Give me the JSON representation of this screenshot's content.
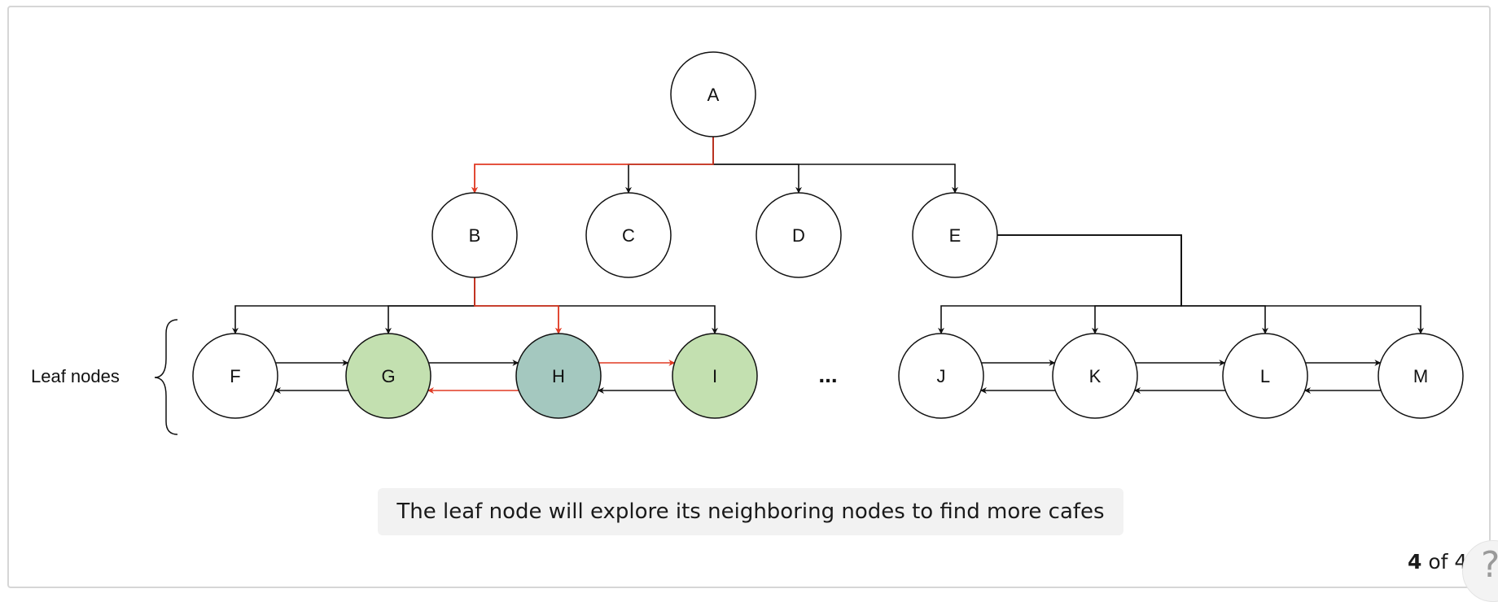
{
  "diagram": {
    "nodes": [
      {
        "id": "A",
        "label": "A",
        "fill": "#ffffff"
      },
      {
        "id": "B",
        "label": "B",
        "fill": "#ffffff"
      },
      {
        "id": "C",
        "label": "C",
        "fill": "#ffffff"
      },
      {
        "id": "D",
        "label": "D",
        "fill": "#ffffff"
      },
      {
        "id": "E",
        "label": "E",
        "fill": "#ffffff"
      },
      {
        "id": "F",
        "label": "F",
        "fill": "#ffffff"
      },
      {
        "id": "G",
        "label": "G",
        "fill": "#c3e0b0"
      },
      {
        "id": "H",
        "label": "H",
        "fill": "#a4c8bf"
      },
      {
        "id": "I",
        "label": "I",
        "fill": "#c3e0b0"
      },
      {
        "id": "J",
        "label": "J",
        "fill": "#ffffff"
      },
      {
        "id": "K",
        "label": "K",
        "fill": "#ffffff"
      },
      {
        "id": "L",
        "label": "L",
        "fill": "#ffffff"
      },
      {
        "id": "M",
        "label": "M",
        "fill": "#ffffff"
      }
    ],
    "tree_edges": [
      {
        "from": "A",
        "to": "B",
        "highlight": true
      },
      {
        "from": "A",
        "to": "C",
        "highlight": false
      },
      {
        "from": "A",
        "to": "D",
        "highlight": false
      },
      {
        "from": "A",
        "to": "E",
        "highlight": false
      },
      {
        "from": "B",
        "to": "F",
        "highlight": false
      },
      {
        "from": "B",
        "to": "G",
        "highlight": false
      },
      {
        "from": "B",
        "to": "H",
        "highlight": true
      },
      {
        "from": "B",
        "to": "I",
        "highlight": false
      },
      {
        "from": "E",
        "to": "J",
        "highlight": false
      },
      {
        "from": "E",
        "to": "K",
        "highlight": false
      },
      {
        "from": "E",
        "to": "L",
        "highlight": false
      },
      {
        "from": "E",
        "to": "M",
        "highlight": false
      }
    ],
    "sibling_links": [
      {
        "from": "F",
        "to": "G",
        "highlight": false
      },
      {
        "from": "G",
        "to": "F",
        "highlight": false
      },
      {
        "from": "G",
        "to": "H",
        "highlight": false
      },
      {
        "from": "H",
        "to": "G",
        "highlight": true
      },
      {
        "from": "H",
        "to": "I",
        "highlight": true
      },
      {
        "from": "I",
        "to": "H",
        "highlight": false
      },
      {
        "from": "J",
        "to": "K",
        "highlight": false
      },
      {
        "from": "K",
        "to": "J",
        "highlight": false
      },
      {
        "from": "K",
        "to": "L",
        "highlight": false
      },
      {
        "from": "L",
        "to": "K",
        "highlight": false
      },
      {
        "from": "L",
        "to": "M",
        "highlight": false
      },
      {
        "from": "M",
        "to": "L",
        "highlight": false
      }
    ],
    "leaf_label": "Leaf nodes",
    "ellipsis": "...",
    "colors": {
      "highlight": "#e03a24",
      "default": "#111111"
    }
  },
  "caption": "The leaf node will explore its neighboring nodes to find more cafes",
  "pager": {
    "current": "4",
    "sep": "of",
    "total": "4"
  },
  "help": {
    "label": "?"
  }
}
